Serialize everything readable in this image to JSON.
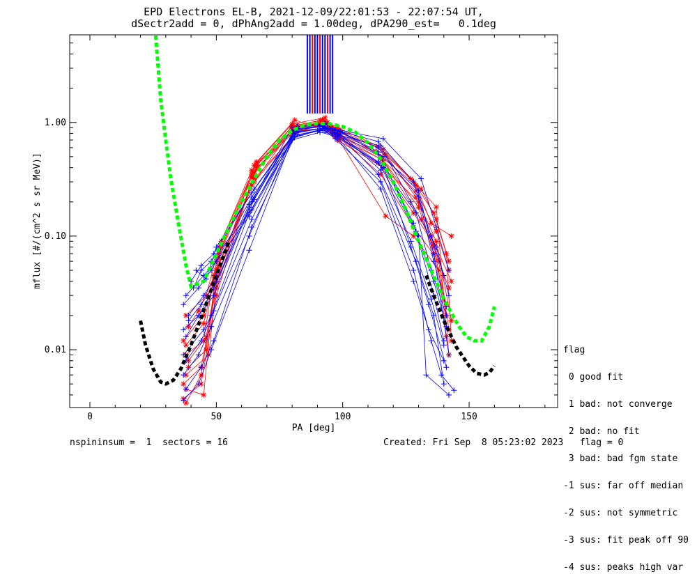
{
  "title_line1": "EPD Electrons EL-B, 2021-12-09/22:01:53 - 22:07:54 UT,",
  "title_line2": "dSectr2add = 0, dPhAng2add = 1.00deg, dPA290_est=   0.1deg",
  "footer_left": "nspininsum =  1  sectors = 16",
  "footer_right": "Created: Fri Sep  8 05:23:02 2023   flag = 0",
  "legend": {
    "title": "flag",
    "items": [
      " 0 good fit",
      " 1 bad: not converge",
      " 2 bad: no fit",
      " 3 bad: bad fgm state",
      "-1 sus: far off median",
      "-2 sus: not symmetric",
      "-3 sus: fit peak off 90",
      "-4 sus: peaks high var"
    ]
  },
  "chart_data": {
    "type": "line",
    "xlabel": "PA [deg]",
    "ylabel": "mflux [#/(cm^2 s sr MeV)]",
    "xlim": [
      -8,
      185
    ],
    "ylim": [
      0.0031,
      5.9
    ],
    "yscale": "log",
    "xticks": [
      0,
      50,
      100,
      150
    ],
    "xtick_labels": [
      "0",
      "50",
      "100",
      "150"
    ],
    "yticks": [
      0.01,
      0.1,
      1.0
    ],
    "ytick_labels": [
      "0.01",
      "0.10",
      "1.00"
    ],
    "colors": {
      "red": "#ff0000",
      "blue": "#0000ff",
      "green": "#00ff00",
      "black": "#000000"
    },
    "fit_curves": [
      {
        "color": "green",
        "style": "dashed",
        "x": [
          26,
          28,
          30,
          32,
          35,
          38,
          40,
          45,
          50,
          55,
          60,
          65,
          70,
          75,
          80,
          85,
          90,
          95,
          100,
          105,
          110,
          115,
          120,
          125,
          130,
          135,
          140,
          143,
          146,
          149,
          152,
          155,
          158,
          160
        ],
        "y": [
          5.8,
          1.6,
          0.7,
          0.32,
          0.13,
          0.055,
          0.036,
          0.04,
          0.07,
          0.12,
          0.2,
          0.32,
          0.5,
          0.7,
          0.85,
          0.95,
          0.98,
          0.97,
          0.92,
          0.82,
          0.66,
          0.48,
          0.3,
          0.17,
          0.09,
          0.05,
          0.028,
          0.021,
          0.016,
          0.013,
          0.012,
          0.012,
          0.016,
          0.024
        ]
      },
      {
        "color": "black",
        "style": "dashed",
        "x": [
          20,
          22,
          25,
          28,
          30,
          33,
          36,
          40,
          45,
          50,
          55
        ],
        "y": [
          0.018,
          0.011,
          0.0068,
          0.0052,
          0.005,
          0.0054,
          0.0068,
          0.011,
          0.022,
          0.045,
          0.09
        ]
      },
      {
        "color": "black",
        "style": "dashed",
        "x": [
          133,
          136,
          140,
          145,
          150,
          153,
          156,
          158,
          160
        ],
        "y": [
          0.045,
          0.03,
          0.018,
          0.0105,
          0.0072,
          0.0062,
          0.006,
          0.0063,
          0.0072
        ]
      }
    ],
    "spikes": {
      "x": [
        86,
        87,
        88,
        89,
        90,
        91,
        92,
        93,
        94,
        95,
        96
      ],
      "ymin": 1.2,
      "ymax": 5.9,
      "colors": [
        "blue",
        "blue",
        "red",
        "blue",
        "blue",
        "red",
        "blue",
        "blue",
        "red",
        "blue",
        "blue"
      ]
    },
    "series": [
      {
        "color": "red",
        "x": [
          38,
          44,
          50,
          65,
          80,
          93,
          98,
          114,
          128,
          136,
          141,
          143
        ],
        "y": [
          0.0034,
          0.006,
          0.04,
          0.42,
          0.97,
          1.1,
          0.82,
          0.6,
          0.3,
          0.16,
          0.07,
          0.012
        ]
      },
      {
        "color": "red",
        "x": [
          38,
          45,
          50,
          64,
          81,
          92,
          97,
          115,
          129,
          137,
          142
        ],
        "y": [
          0.0045,
          0.004,
          0.06,
          0.35,
          0.9,
          1.0,
          0.75,
          0.48,
          0.25,
          0.11,
          0.05
        ]
      },
      {
        "color": "red",
        "x": [
          37,
          45,
          51,
          66,
          81,
          94,
          98,
          116,
          130,
          137,
          143
        ],
        "y": [
          0.012,
          0.02,
          0.07,
          0.45,
          1.05,
          0.85,
          0.7,
          0.4,
          0.2,
          0.09,
          0.018
        ]
      },
      {
        "color": "red",
        "x": [
          39,
          46,
          50,
          65,
          82,
          91,
          97,
          117,
          128,
          138,
          141
        ],
        "y": [
          0.007,
          0.01,
          0.05,
          0.32,
          0.82,
          0.95,
          0.8,
          0.15,
          0.1,
          0.05,
          0.013
        ]
      },
      {
        "color": "red",
        "x": [
          38,
          46,
          51,
          64,
          80,
          93,
          99,
          115,
          131,
          136,
          142
        ],
        "y": [
          0.02,
          0.03,
          0.08,
          0.38,
          0.92,
          1.02,
          0.85,
          0.5,
          0.14,
          0.08,
          0.035
        ]
      },
      {
        "color": "red",
        "x": [
          37,
          44,
          50,
          66,
          82,
          95,
          97,
          113,
          129,
          135,
          143
        ],
        "y": [
          0.005,
          0.007,
          0.035,
          0.42,
          0.95,
          0.92,
          0.78,
          0.55,
          0.28,
          0.13,
          0.1
        ]
      },
      {
        "color": "red",
        "x": [
          38,
          45,
          49,
          65,
          81,
          92,
          98,
          114,
          127,
          137,
          142
        ],
        "y": [
          0.009,
          0.012,
          0.045,
          0.3,
          0.8,
          1.06,
          0.9,
          0.62,
          0.32,
          0.18,
          0.009
        ]
      },
      {
        "color": "red",
        "x": [
          39,
          43,
          51,
          64,
          80,
          90,
          96,
          116,
          130,
          136,
          141
        ],
        "y": [
          0.016,
          0.022,
          0.055,
          0.28,
          0.88,
          0.98,
          0.84,
          0.46,
          0.18,
          0.07,
          0.025
        ]
      },
      {
        "color": "red",
        "x": [
          38,
          47,
          52,
          66,
          81,
          94,
          99,
          115,
          128,
          138,
          142
        ],
        "y": [
          0.006,
          0.009,
          0.09,
          0.44,
          0.86,
          1.0,
          0.72,
          0.35,
          0.12,
          0.06,
          0.015
        ]
      },
      {
        "color": "red",
        "x": [
          37,
          44,
          50,
          65,
          82,
          93,
          98,
          117,
          129,
          135,
          143
        ],
        "y": [
          0.0037,
          0.005,
          0.03,
          0.36,
          0.9,
          0.97,
          0.8,
          0.52,
          0.22,
          0.1,
          0.04
        ]
      },
      {
        "color": "red",
        "x": [
          38,
          45,
          51,
          64,
          80,
          91,
          97,
          116,
          131,
          137,
          142
        ],
        "y": [
          0.011,
          0.017,
          0.065,
          0.33,
          0.93,
          1.04,
          0.88,
          0.58,
          0.26,
          0.14,
          0.06
        ]
      },
      {
        "color": "red",
        "x": [
          39,
          46,
          50,
          66,
          81,
          95,
          98,
          114,
          128,
          136,
          141
        ],
        "y": [
          0.008,
          0.013,
          0.04,
          0.4,
          0.84,
          0.9,
          0.76,
          0.44,
          0.16,
          0.085,
          0.02
        ]
      },
      {
        "color": "blue",
        "x": [
          37,
          43,
          48,
          63,
          80,
          92,
          97,
          115,
          128,
          135,
          139,
          144
        ],
        "y": [
          0.0036,
          0.005,
          0.01,
          0.075,
          0.72,
          0.88,
          0.72,
          0.3,
          0.05,
          0.012,
          0.006,
          0.0044
        ]
      },
      {
        "color": "blue",
        "x": [
          38,
          44,
          49,
          64,
          81,
          91,
          98,
          114,
          129,
          136,
          140
        ],
        "y": [
          0.0045,
          0.007,
          0.012,
          0.12,
          0.75,
          0.85,
          0.8,
          0.35,
          0.06,
          0.02,
          0.005
        ]
      },
      {
        "color": "blue",
        "x": [
          37,
          45,
          48,
          63,
          82,
          93,
          96,
          116,
          127,
          134,
          141
        ],
        "y": [
          0.009,
          0.015,
          0.02,
          0.16,
          0.82,
          0.9,
          0.78,
          0.42,
          0.08,
          0.025,
          0.007
        ]
      },
      {
        "color": "blue",
        "x": [
          38,
          43,
          49,
          64,
          80,
          90,
          97,
          115,
          130,
          133,
          142
        ],
        "y": [
          0.013,
          0.02,
          0.03,
          0.2,
          0.9,
          0.95,
          0.82,
          0.5,
          0.1,
          0.006,
          0.004
        ]
      },
      {
        "color": "blue",
        "x": [
          39,
          44,
          50,
          63,
          81,
          92,
          99,
          114,
          128,
          136,
          140
        ],
        "y": [
          0.018,
          0.025,
          0.04,
          0.18,
          0.85,
          0.92,
          0.84,
          0.55,
          0.13,
          0.03,
          0.012
        ]
      },
      {
        "color": "blue",
        "x": [
          37,
          43,
          48,
          64,
          82,
          94,
          98,
          116,
          129,
          135,
          141
        ],
        "y": [
          0.025,
          0.035,
          0.05,
          0.22,
          0.78,
          0.87,
          0.76,
          0.4,
          0.16,
          0.05,
          0.02
        ]
      },
      {
        "color": "blue",
        "x": [
          38,
          45,
          50,
          63,
          80,
          91,
          96,
          115,
          127,
          137,
          142
        ],
        "y": [
          0.03,
          0.045,
          0.06,
          0.15,
          0.7,
          0.82,
          0.8,
          0.62,
          0.2,
          0.08,
          0.03
        ]
      },
      {
        "color": "blue",
        "x": [
          40,
          44,
          49,
          64,
          81,
          93,
          97,
          114,
          128,
          135,
          140
        ],
        "y": [
          0.04,
          0.055,
          0.07,
          0.24,
          0.8,
          0.9,
          0.86,
          0.68,
          0.3,
          0.1,
          0.045
        ]
      },
      {
        "color": "blue",
        "x": [
          42,
          46,
          50,
          65,
          82,
          92,
          99,
          116,
          130,
          136,
          142
        ],
        "y": [
          0.05,
          0.042,
          0.08,
          0.26,
          0.88,
          0.94,
          0.83,
          0.5,
          0.25,
          0.07,
          0.009
        ]
      },
      {
        "color": "blue",
        "x": [
          37,
          43,
          48,
          63,
          80,
          90,
          98,
          115,
          128,
          134,
          140
        ],
        "y": [
          0.006,
          0.009,
          0.016,
          0.1,
          0.74,
          0.84,
          0.74,
          0.26,
          0.04,
          0.015,
          0.008
        ]
      },
      {
        "color": "blue",
        "x": [
          38,
          44,
          49,
          64,
          81,
          94,
          97,
          114,
          129,
          136,
          141
        ],
        "y": [
          0.008,
          0.012,
          0.022,
          0.14,
          0.83,
          0.89,
          0.81,
          0.45,
          0.11,
          0.04,
          0.016
        ]
      },
      {
        "color": "blue",
        "x": [
          39,
          45,
          50,
          63,
          82,
          93,
          96,
          116,
          131,
          137,
          142
        ],
        "y": [
          0.02,
          0.03,
          0.045,
          0.19,
          0.92,
          0.98,
          0.88,
          0.72,
          0.32,
          0.12,
          0.05
        ]
      },
      {
        "color": "blue",
        "x": [
          41,
          44,
          48,
          64,
          80,
          91,
          99,
          115,
          127,
          135,
          140
        ],
        "y": [
          0.035,
          0.05,
          0.06,
          0.17,
          0.76,
          0.86,
          0.79,
          0.38,
          0.09,
          0.028,
          0.011
        ]
      },
      {
        "color": "blue",
        "x": [
          37,
          43,
          49,
          65,
          81,
          92,
          97,
          114,
          130,
          136,
          141
        ],
        "y": [
          0.015,
          0.02,
          0.035,
          0.21,
          0.86,
          0.93,
          0.85,
          0.6,
          0.22,
          0.06,
          0.024
        ]
      }
    ]
  }
}
